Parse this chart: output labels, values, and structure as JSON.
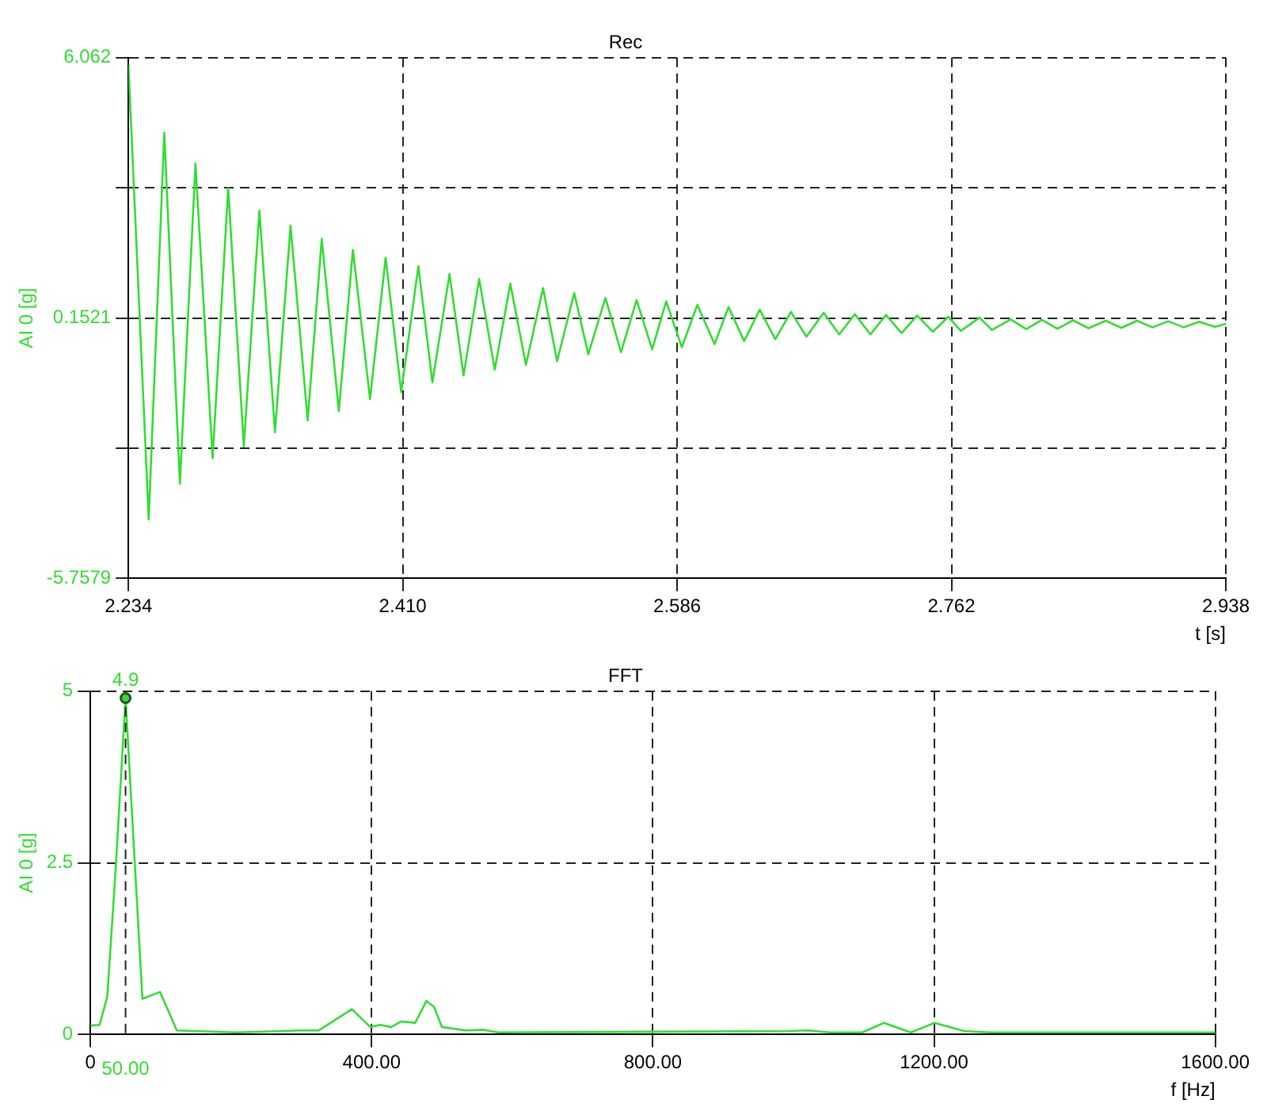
{
  "chart_data": [
    {
      "type": "line",
      "title": "Rec",
      "xlabel": "t [s]",
      "ylabel": "AI 0 [g]",
      "xlim": [
        2.234,
        2.938
      ],
      "xticks": [
        2.234,
        {
          "value": 2.41,
          "label": "2.410"
        },
        2.586,
        2.762,
        2.938
      ],
      "ylim": [
        -5.7579,
        6.062
      ],
      "yticks": [
        -5.7579,
        {
          "value": -2.803,
          "label": null
        },
        0.1521,
        {
          "value": 3.107,
          "label": null
        },
        6.062
      ],
      "grid": true,
      "series": [
        {
          "color": "#33dd33",
          "x": [
            2.234,
            2.247,
            2.257,
            2.267,
            2.277,
            2.288,
            2.298,
            2.308,
            2.318,
            2.328,
            2.338,
            2.349,
            2.358,
            2.369,
            2.378,
            2.389,
            2.399,
            2.409,
            2.42,
            2.429,
            2.44,
            2.449,
            2.459,
            2.469,
            2.479,
            2.489,
            2.5,
            2.509,
            2.52,
            2.529,
            2.54,
            2.55,
            2.56,
            2.57,
            2.579,
            2.589,
            2.599,
            2.61,
            2.619,
            2.629,
            2.639,
            2.649,
            2.659,
            2.669,
            2.68,
            2.69,
            2.7,
            2.71,
            2.72,
            2.73,
            2.74,
            2.75,
            2.76,
            2.768,
            2.78,
            2.788,
            2.8,
            2.81,
            2.82,
            2.83,
            2.84,
            2.85,
            2.861,
            2.871,
            2.881,
            2.891,
            2.901,
            2.911,
            2.921,
            2.931,
            2.938
          ],
          "values": [
            5.9,
            -4.42,
            4.36,
            -3.61,
            3.66,
            -3.03,
            3.1,
            -2.76,
            2.59,
            -2.44,
            2.25,
            -2.17,
            1.95,
            -1.96,
            1.7,
            -1.69,
            1.52,
            -1.53,
            1.33,
            -1.31,
            1.15,
            -1.15,
            1.04,
            -1.02,
            0.93,
            -0.91,
            0.83,
            -0.83,
            0.72,
            -0.67,
            0.61,
            -0.62,
            0.56,
            -0.56,
            0.53,
            -0.51,
            0.45,
            -0.44,
            0.4,
            -0.37,
            0.34,
            -0.33,
            0.29,
            -0.27,
            0.27,
            -0.22,
            0.24,
            -0.22,
            0.22,
            -0.19,
            0.21,
            -0.16,
            0.18,
            -0.14,
            0.16,
            -0.12,
            0.12,
            -0.1,
            0.11,
            -0.09,
            0.1,
            -0.08,
            0.09,
            -0.07,
            0.09,
            -0.06,
            0.08,
            -0.06,
            0.07,
            -0.05,
            0.02
          ]
        }
      ]
    },
    {
      "type": "line",
      "title": "FFT",
      "xlabel": "f [Hz]",
      "ylabel": "AI 0 [g]",
      "xlim": [
        0,
        1600
      ],
      "xticks": [
        0,
        {
          "value": 400,
          "label": "400.00"
        },
        {
          "value": 800,
          "label": "800.00"
        },
        {
          "value": 1200,
          "label": "1200.00"
        },
        {
          "value": 1600,
          "label": "1600.00"
        }
      ],
      "ylim": [
        0,
        5
      ],
      "yticks": [
        0,
        2.5,
        5
      ],
      "grid": true,
      "ref_lines": [
        {
          "axis": "x",
          "value": 50,
          "label": "50.00",
          "line_style": "dashed"
        }
      ],
      "annotations": [
        {
          "text": "4.9",
          "x": 50,
          "y": 4.9
        }
      ],
      "series": [
        {
          "color": "#33dd33",
          "x": [
            0,
            13,
            24,
            36,
            50,
            62,
            74,
            99,
            123,
            208,
            298,
            325,
            372,
            398,
            412,
            428,
            442,
            462,
            478,
            489,
            500,
            534,
            558,
            580,
            992,
            1022,
            1052,
            1098,
            1129,
            1167,
            1201,
            1243,
            1280,
            1600
          ],
          "values": [
            0.13,
            0.14,
            0.55,
            2.42,
            4.9,
            2.7,
            0.52,
            0.62,
            0.06,
            0.03,
            0.06,
            0.06,
            0.37,
            0.11,
            0.14,
            0.11,
            0.19,
            0.17,
            0.49,
            0.4,
            0.11,
            0.06,
            0.07,
            0.03,
            0.05,
            0.06,
            0.03,
            0.03,
            0.17,
            0.03,
            0.17,
            0.05,
            0.03,
            0.03
          ]
        }
      ]
    }
  ]
}
